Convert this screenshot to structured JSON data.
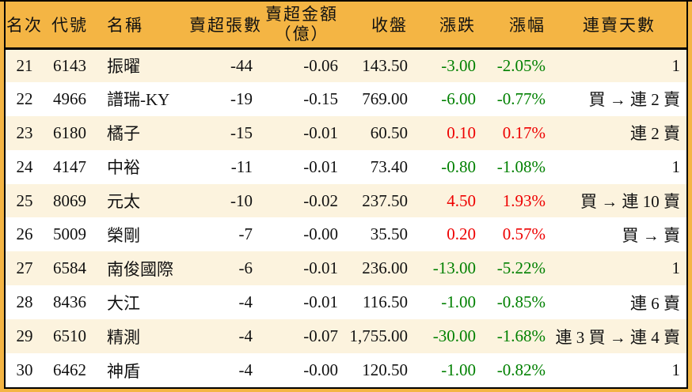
{
  "colors": {
    "header_bg": "#F4B544",
    "row_alt_bg": "#FCF3DE",
    "row_bg": "#FFFFFF",
    "border": "#000000",
    "text": "#111111",
    "up_red": "#EE0000",
    "down_green": "#008000"
  },
  "chart_data": {
    "type": "table",
    "title": "",
    "columns": [
      {
        "key": "rank",
        "label": "名次"
      },
      {
        "key": "code",
        "label": "代號"
      },
      {
        "key": "name",
        "label": "名稱"
      },
      {
        "key": "vol",
        "label": "賣超張數"
      },
      {
        "key": "amt",
        "label": "賣超金額",
        "label2": "（億）"
      },
      {
        "key": "close",
        "label": "收盤"
      },
      {
        "key": "chg",
        "label": "漲跌"
      },
      {
        "key": "pct",
        "label": "漲幅"
      },
      {
        "key": "days",
        "label": "連賣天數"
      }
    ],
    "rows": [
      {
        "rank": "21",
        "code": "6143",
        "name": "振曜",
        "vol": "-44",
        "amt": "-0.06",
        "close": "143.50",
        "chg": "-3.00",
        "pct": "-2.05%",
        "trend": "down",
        "days": "1"
      },
      {
        "rank": "22",
        "code": "4966",
        "name": "譜瑞-KY",
        "vol": "-19",
        "amt": "-0.15",
        "close": "769.00",
        "chg": "-6.00",
        "pct": "-0.77%",
        "trend": "down",
        "days": "買 → 連 2 賣"
      },
      {
        "rank": "23",
        "code": "6180",
        "name": "橘子",
        "vol": "-15",
        "amt": "-0.01",
        "close": "60.50",
        "chg": "0.10",
        "pct": "0.17%",
        "trend": "up",
        "days": "連 2 賣"
      },
      {
        "rank": "24",
        "code": "4147",
        "name": "中裕",
        "vol": "-11",
        "amt": "-0.01",
        "close": "73.40",
        "chg": "-0.80",
        "pct": "-1.08%",
        "trend": "down",
        "days": "1"
      },
      {
        "rank": "25",
        "code": "8069",
        "name": "元太",
        "vol": "-10",
        "amt": "-0.02",
        "close": "237.50",
        "chg": "4.50",
        "pct": "1.93%",
        "trend": "up",
        "days": "買 → 連 10 賣"
      },
      {
        "rank": "26",
        "code": "5009",
        "name": "榮剛",
        "vol": "-7",
        "amt": "-0.00",
        "close": "35.50",
        "chg": "0.20",
        "pct": "0.57%",
        "trend": "up",
        "days": "買 → 賣"
      },
      {
        "rank": "27",
        "code": "6584",
        "name": "南俊國際",
        "vol": "-6",
        "amt": "-0.01",
        "close": "236.00",
        "chg": "-13.00",
        "pct": "-5.22%",
        "trend": "down",
        "days": "1"
      },
      {
        "rank": "28",
        "code": "8436",
        "name": "大江",
        "vol": "-4",
        "amt": "-0.01",
        "close": "116.50",
        "chg": "-1.00",
        "pct": "-0.85%",
        "trend": "down",
        "days": "連 6 賣"
      },
      {
        "rank": "29",
        "code": "6510",
        "name": "精測",
        "vol": "-4",
        "amt": "-0.07",
        "close": "1,755.00",
        "chg": "-30.00",
        "pct": "-1.68%",
        "trend": "down",
        "days": "連 3 買 → 連 4 賣"
      },
      {
        "rank": "30",
        "code": "6462",
        "name": "神盾",
        "vol": "-4",
        "amt": "-0.00",
        "close": "120.50",
        "chg": "-1.00",
        "pct": "-0.82%",
        "trend": "down",
        "days": "1"
      }
    ]
  }
}
